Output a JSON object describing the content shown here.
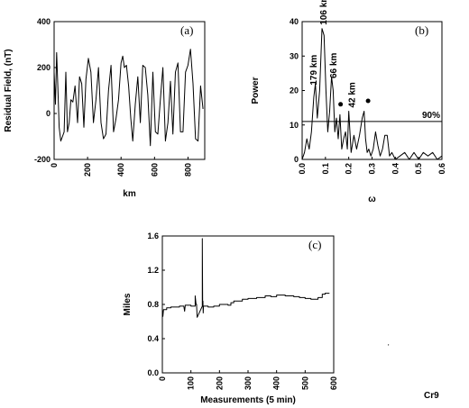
{
  "chart_data": [
    {
      "panel": "(a)",
      "type": "line",
      "xlabel": "km",
      "ylabel": "Residual Field, (nT)",
      "xlim": [
        0,
        900
      ],
      "ylim": [
        -200,
        400
      ],
      "xticks": [
        0,
        200,
        400,
        600,
        800
      ],
      "yticks": [
        -200,
        0,
        200,
        400
      ],
      "grid": false,
      "series": [
        {
          "x": [
            0,
            8,
            15,
            22,
            30,
            40,
            50,
            60,
            70,
            80,
            90,
            100,
            112,
            125,
            140,
            152,
            165,
            178,
            190,
            205,
            220,
            235,
            250,
            265,
            280,
            295,
            310,
            325,
            340,
            355,
            370,
            385,
            400,
            410,
            420,
            432,
            445,
            458,
            470,
            485,
            500,
            515,
            530,
            545,
            560,
            575,
            590,
            605,
            620,
            635,
            650,
            665,
            680,
            695,
            710,
            725,
            740,
            755,
            770,
            785,
            800,
            815,
            830,
            845,
            860,
            875,
            890
          ],
          "y": [
            180,
            40,
            265,
            120,
            -60,
            -120,
            -100,
            -80,
            180,
            -80,
            -40,
            60,
            50,
            120,
            -40,
            160,
            130,
            -60,
            150,
            240,
            180,
            -40,
            60,
            200,
            -40,
            -110,
            -90,
            100,
            210,
            -80,
            -20,
            60,
            220,
            250,
            200,
            210,
            120,
            -20,
            -120,
            40,
            160,
            -40,
            210,
            200,
            80,
            -140,
            180,
            -80,
            -90,
            60,
            200,
            -120,
            -40,
            140,
            -90,
            180,
            220,
            -80,
            -80,
            180,
            210,
            280,
            130,
            -110,
            -120,
            120,
            20
          ]
        }
      ]
    },
    {
      "panel": "(b)",
      "type": "line",
      "xlabel": "ω",
      "ylabel": "Power",
      "xlim": [
        0,
        0.6
      ],
      "ylim": [
        0,
        40
      ],
      "xticks": [
        "0.0",
        "0.1",
        "0.2",
        "0.3",
        "0.4",
        "0.5",
        "0.6"
      ],
      "yticks": [
        0,
        10,
        20,
        30,
        40
      ],
      "grid": false,
      "threshold": {
        "value": 11,
        "label": "90%"
      },
      "peak_labels": [
        "179 km",
        "106 km",
        "66 km",
        "42 km"
      ],
      "markers": [
        {
          "x": 0.165,
          "y": 16
        },
        {
          "x": 0.283,
          "y": 17
        }
      ],
      "series": [
        {
          "x": [
            0.0,
            0.01,
            0.02,
            0.03,
            0.04,
            0.05,
            0.057,
            0.065,
            0.075,
            0.085,
            0.094,
            0.102,
            0.11,
            0.118,
            0.126,
            0.133,
            0.14,
            0.147,
            0.155,
            0.162,
            0.17,
            0.178,
            0.186,
            0.194,
            0.2,
            0.21,
            0.222,
            0.234,
            0.246,
            0.258,
            0.266,
            0.272,
            0.279,
            0.286,
            0.295,
            0.305,
            0.315,
            0.325,
            0.335,
            0.345,
            0.355,
            0.365,
            0.375,
            0.385,
            0.4,
            0.42,
            0.44,
            0.46,
            0.48,
            0.5,
            0.52,
            0.54,
            0.56,
            0.58,
            0.6
          ],
          "y": [
            0,
            2,
            6,
            3,
            8,
            18,
            22,
            12,
            20,
            38,
            36,
            20,
            8,
            14,
            24,
            20,
            8,
            12,
            6,
            13,
            3,
            6,
            8,
            3,
            14,
            2,
            7,
            3,
            7,
            12,
            14,
            6,
            2,
            3,
            1,
            3,
            8,
            4,
            1,
            3,
            7,
            7,
            1,
            2,
            0,
            1,
            2,
            0,
            2,
            0,
            2,
            1,
            2,
            0,
            1
          ]
        }
      ]
    },
    {
      "panel": "(c)",
      "type": "line",
      "xlabel": "Measurements (5 min)",
      "ylabel": "Miles",
      "xlim": [
        0,
        600
      ],
      "ylim": [
        0,
        1.6
      ],
      "xticks": [
        0,
        100,
        200,
        300,
        400,
        500,
        600
      ],
      "yticks": [
        "0.0",
        "0.4",
        "0.8",
        "1.2",
        "1.6"
      ],
      "grid": false,
      "series": [
        {
          "x": [
            0,
            2,
            4,
            8,
            15,
            15,
            18,
            30,
            30,
            60,
            60,
            75,
            75,
            78,
            80,
            80,
            100,
            100,
            115,
            115,
            118,
            120,
            120,
            122,
            140,
            140,
            141,
            142,
            143,
            144,
            160,
            160,
            180,
            180,
            200,
            200,
            210,
            210,
            230,
            230,
            240,
            240,
            250,
            250,
            270,
            270,
            280,
            280,
            300,
            300,
            330,
            330,
            360,
            360,
            380,
            380,
            400,
            400,
            430,
            430,
            460,
            460,
            480,
            480,
            500,
            500,
            520,
            520,
            545,
            545,
            560,
            560,
            570,
            570,
            585,
            585
          ],
          "y": [
            0.74,
            0.66,
            0.74,
            0.74,
            0.74,
            0.76,
            0.76,
            0.76,
            0.77,
            0.77,
            0.78,
            0.78,
            0.78,
            0.72,
            0.78,
            0.79,
            0.79,
            0.78,
            0.78,
            0.9,
            0.8,
            0.8,
            0.78,
            0.65,
            0.78,
            1.57,
            0.78,
            0.84,
            0.7,
            0.78,
            0.78,
            0.77,
            0.77,
            0.78,
            0.78,
            0.8,
            0.8,
            0.8,
            0.8,
            0.79,
            0.79,
            0.82,
            0.82,
            0.84,
            0.84,
            0.84,
            0.84,
            0.86,
            0.86,
            0.87,
            0.87,
            0.88,
            0.88,
            0.9,
            0.9,
            0.89,
            0.89,
            0.91,
            0.91,
            0.9,
            0.9,
            0.89,
            0.89,
            0.88,
            0.88,
            0.87,
            0.87,
            0.86,
            0.86,
            0.88,
            0.88,
            0.92,
            0.92,
            0.93,
            0.93,
            0.93
          ]
        }
      ]
    }
  ],
  "footer": {
    "code": "Cr9"
  }
}
